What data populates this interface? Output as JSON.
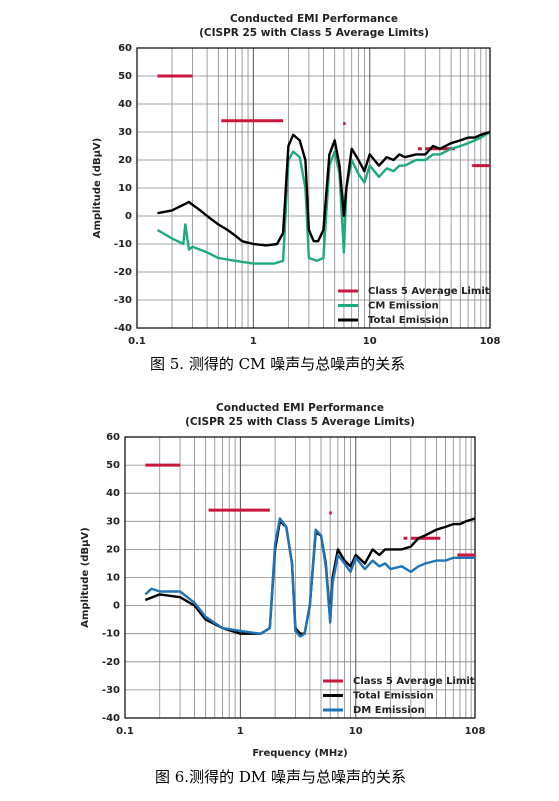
{
  "chart_data": [
    {
      "type": "line",
      "title": "Conducted EMI Performance",
      "subtitle": "(CISPR 25 with Class 5 Average Limits)",
      "ylabel": "Amplitude (dBμV)",
      "xscale": "log",
      "xlim": [
        0.1,
        108
      ],
      "xticks": [
        0.1,
        1,
        10,
        108
      ],
      "x_minor_ticks": [
        0.2,
        0.3,
        0.4,
        0.5,
        0.6,
        0.7,
        0.8,
        0.9,
        2,
        3,
        4,
        5,
        6,
        7,
        8,
        9,
        20,
        30,
        40,
        50,
        60,
        70,
        80,
        90,
        100
      ],
      "ylim": [
        -40,
        60
      ],
      "yticks": [
        -40,
        -30,
        -20,
        -10,
        0,
        10,
        20,
        30,
        40,
        50,
        60
      ],
      "grid": true,
      "legend": "lower right",
      "series": [
        {
          "name": "Class 5 Average Limit",
          "color": "#c8163c",
          "x": [
            0.15,
            0.3,
            0.3,
            0.53,
            1.8,
            1.8,
            5.9,
            6.2,
            6.2,
            26,
            28,
            28,
            30,
            54,
            54,
            76,
            108
          ],
          "values": [
            50,
            50,
            null,
            34,
            34,
            null,
            33,
            33,
            null,
            24,
            24,
            null,
            24,
            24,
            null,
            18,
            18
          ]
        },
        {
          "name": "CM Emission",
          "color": "#1faa7a",
          "x": [
            0.15,
            0.2,
            0.25,
            0.26,
            0.28,
            0.3,
            0.4,
            0.5,
            0.7,
            1,
            1.5,
            1.8,
            2.0,
            2.2,
            2.5,
            2.8,
            3.0,
            3.5,
            4.0,
            4.5,
            5.0,
            5.5,
            6.0,
            6.3,
            7,
            8,
            9,
            10,
            12,
            14,
            16,
            18,
            20,
            25,
            30,
            35,
            40,
            50,
            60,
            70,
            80,
            90,
            108
          ],
          "values": [
            -5,
            -8,
            -10,
            -3,
            -12,
            -11,
            -13,
            -15,
            -16,
            -17,
            -17,
            -16,
            20,
            23,
            21,
            10,
            -15,
            -16,
            -15,
            18,
            23,
            15,
            -13,
            10,
            20,
            15,
            12,
            18,
            14,
            17,
            16,
            18,
            18,
            20,
            20,
            22,
            22,
            24,
            25,
            26,
            27,
            28,
            30
          ]
        },
        {
          "name": "Total Emission",
          "color": "#000000",
          "x": [
            0.15,
            0.2,
            0.25,
            0.28,
            0.3,
            0.35,
            0.4,
            0.5,
            0.6,
            0.7,
            0.8,
            1,
            1.3,
            1.6,
            1.8,
            2.0,
            2.2,
            2.5,
            2.8,
            3.0,
            3.3,
            3.6,
            4.0,
            4.5,
            5.0,
            5.5,
            6.0,
            6.3,
            7,
            8,
            9,
            10,
            12,
            14,
            16,
            18,
            20,
            25,
            30,
            35,
            40,
            50,
            60,
            70,
            80,
            90,
            108
          ],
          "values": [
            1,
            2,
            4,
            5,
            4,
            2,
            0,
            -3,
            -5,
            -7,
            -9,
            -10,
            -10.5,
            -10,
            -6,
            25,
            29,
            27,
            20,
            -5,
            -9,
            -9,
            -5,
            22,
            27,
            18,
            0,
            10,
            24,
            20,
            16,
            22,
            18,
            21,
            20,
            22,
            21,
            22,
            22,
            25,
            24,
            26,
            27,
            28,
            28,
            29,
            30
          ]
        }
      ]
    },
    {
      "type": "line",
      "title": "Conducted EMI Performance",
      "subtitle": "(CISPR 25 with Class 5 Average Limits)",
      "xlabel": "Frequency (MHz)",
      "ylabel": "Amplitude (dBμV)",
      "xscale": "log",
      "xlim": [
        0.1,
        108
      ],
      "xticks": [
        0.1,
        1,
        10,
        108
      ],
      "x_minor_ticks": [
        0.2,
        0.3,
        0.4,
        0.5,
        0.6,
        0.7,
        0.8,
        0.9,
        2,
        3,
        4,
        5,
        6,
        7,
        8,
        9,
        20,
        30,
        40,
        50,
        60,
        70,
        80,
        90,
        100
      ],
      "ylim": [
        -40,
        60
      ],
      "yticks": [
        -40,
        -30,
        -20,
        -10,
        0,
        10,
        20,
        30,
        40,
        50,
        60
      ],
      "grid": true,
      "legend": "lower right",
      "series": [
        {
          "name": "Class 5 Average Limit",
          "color": "#c8163c",
          "x": [
            0.15,
            0.3,
            0.3,
            0.53,
            1.8,
            1.8,
            5.9,
            6.2,
            6.2,
            26,
            28,
            28,
            30,
            54,
            54,
            76,
            108
          ],
          "values": [
            50,
            50,
            null,
            34,
            34,
            null,
            33,
            33,
            null,
            24,
            24,
            null,
            24,
            24,
            null,
            18,
            18
          ]
        },
        {
          "name": "Total Emission",
          "color": "#000000",
          "x": [
            0.15,
            0.2,
            0.3,
            0.4,
            0.5,
            0.7,
            1,
            1.5,
            1.8,
            2.0,
            2.2,
            2.5,
            2.8,
            3.0,
            3.3,
            3.6,
            4.0,
            4.5,
            5.0,
            5.5,
            6.0,
            6.3,
            7,
            8,
            9,
            10,
            12,
            14,
            16,
            18,
            20,
            25,
            30,
            35,
            40,
            50,
            60,
            70,
            80,
            90,
            108
          ],
          "values": [
            2,
            4,
            3,
            0,
            -5,
            -8,
            -10,
            -10,
            -8,
            20,
            30,
            28,
            15,
            -8,
            -10,
            -10,
            0,
            26,
            25,
            15,
            -5,
            10,
            20,
            16,
            14,
            18,
            15,
            20,
            18,
            20,
            20,
            20,
            21,
            24,
            25,
            27,
            28,
            29,
            29,
            30,
            31
          ]
        },
        {
          "name": "DM Emission",
          "color": "#1f73b7",
          "x": [
            0.15,
            0.17,
            0.2,
            0.3,
            0.4,
            0.5,
            0.7,
            1,
            1.5,
            1.8,
            2.0,
            2.2,
            2.5,
            2.8,
            3.0,
            3.3,
            3.6,
            4.0,
            4.5,
            5.0,
            5.5,
            6.0,
            6.3,
            7,
            8,
            9,
            10,
            12,
            14,
            16,
            18,
            20,
            25,
            30,
            35,
            40,
            50,
            60,
            70,
            80,
            90,
            108
          ],
          "values": [
            4,
            6,
            5,
            5,
            1,
            -4,
            -8,
            -9,
            -10,
            -8,
            22,
            31,
            28,
            15,
            -9,
            -11,
            -10,
            0,
            27,
            25,
            14,
            -6,
            8,
            18,
            15,
            12,
            17,
            13,
            16,
            14,
            15,
            13,
            14,
            12,
            14,
            15,
            16,
            16,
            17,
            17,
            17,
            17
          ]
        }
      ]
    }
  ],
  "captions": [
    "图 5. 测得的 CM 噪声与总噪声的关系",
    "图 6.测得的 DM 噪声与总噪声的关系"
  ]
}
